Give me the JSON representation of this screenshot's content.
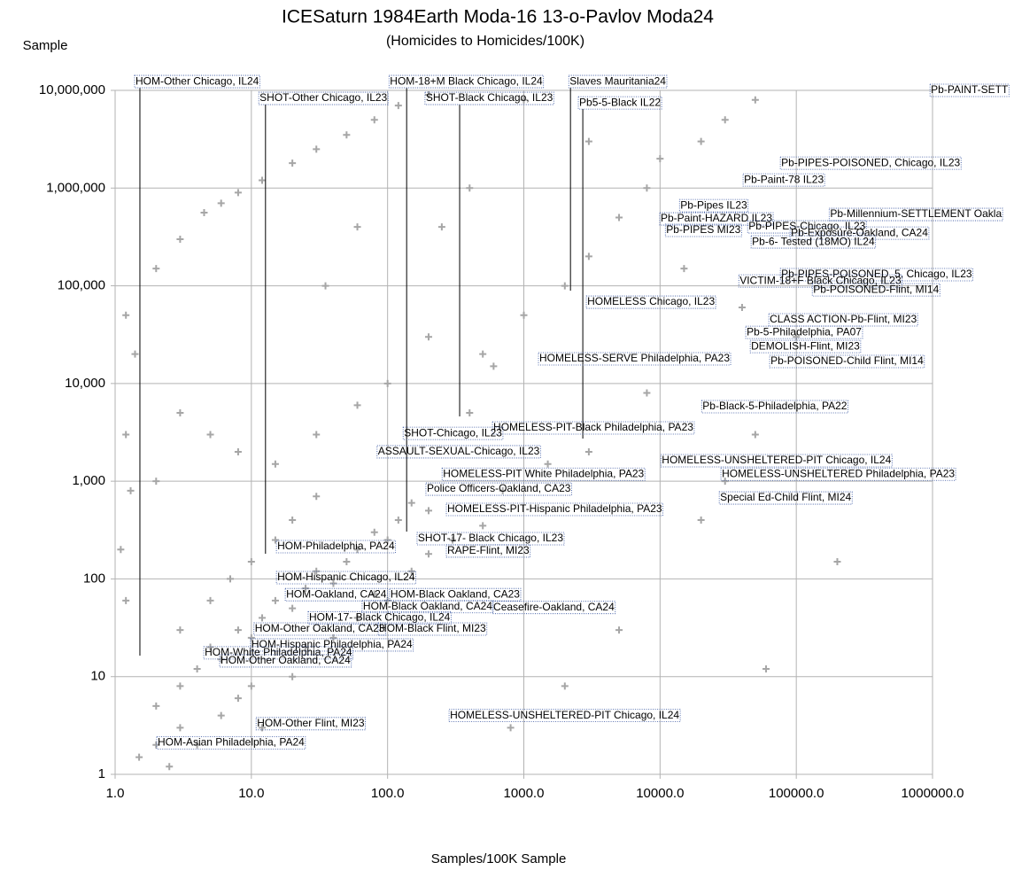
{
  "chart_data": {
    "type": "scatter",
    "title": "ICESaturn 1984Earth Moda-16 13-o-Pavlov Moda24",
    "subtitle": "(Homicides to Homicides/100K)",
    "y_label": "Sample",
    "x_label": "Samples/100K Sample",
    "log_x": true,
    "log_y": true,
    "grid": true,
    "xlim": [
      1,
      1000000
    ],
    "ylim": [
      1,
      10000000
    ],
    "xticks": [
      {
        "value": 1,
        "label": "1.0"
      },
      {
        "value": 10,
        "label": "10.0"
      },
      {
        "value": 100,
        "label": "100.0"
      },
      {
        "value": 1000,
        "label": "1000.0"
      },
      {
        "value": 10000,
        "label": "10000.0"
      },
      {
        "value": 100000,
        "label": "100000.0"
      },
      {
        "value": 1000000,
        "label": "1000000.0"
      }
    ],
    "yticks": [
      1,
      10,
      100,
      {
        "value": 1000,
        "label": "1,000"
      },
      {
        "value": 10000,
        "label": "10,000"
      },
      {
        "value": 100000,
        "label": "100,000"
      },
      {
        "value": 1000000,
        "label": "1,000,000"
      },
      {
        "value": 10000000,
        "label": "10,000,000"
      }
    ],
    "series": [
      {
        "color": "#a6a6a6",
        "x": [
          2,
          3,
          4,
          5,
          6,
          8,
          10,
          12,
          15,
          20,
          25,
          30,
          40,
          50,
          60,
          80,
          100,
          120,
          150,
          200,
          3,
          5,
          7,
          10,
          15,
          20,
          30,
          2,
          3,
          1.5,
          2.5,
          4,
          6,
          8,
          10,
          12,
          20,
          25,
          40,
          60,
          80,
          100,
          150,
          200,
          300,
          500,
          1.2,
          1.1,
          1.3,
          1.2,
          1.4,
          2,
          3,
          5,
          8,
          15,
          30,
          60,
          100,
          200,
          4.5,
          6,
          8,
          12,
          20,
          30,
          50,
          80,
          120,
          200,
          2,
          3,
          1.2,
          500,
          1000,
          2000,
          3000,
          5000,
          8000,
          10000,
          20000,
          30000,
          50000,
          1000,
          3000,
          15000,
          40000,
          100000,
          200000,
          30000,
          60000,
          5000,
          2000,
          800,
          20000,
          50000,
          8000,
          3000,
          1500,
          700,
          400,
          600,
          250,
          400,
          60,
          35
        ],
        "values": [
          5,
          8,
          12,
          20,
          15,
          30,
          25,
          40,
          60,
          50,
          80,
          120,
          90,
          150,
          200,
          300,
          250,
          400,
          600,
          500,
          30,
          60,
          100,
          150,
          250,
          400,
          700,
          2,
          3,
          1.5,
          1.2,
          2,
          4,
          6,
          8,
          3,
          10,
          20,
          25,
          40,
          70,
          60,
          120,
          180,
          250,
          350,
          60,
          200,
          800,
          3000,
          20000,
          1000,
          5000,
          3000,
          2000,
          1500,
          3000,
          6000,
          10000,
          30000,
          560000,
          700000,
          900000,
          1200000,
          1800000,
          2500000,
          3500000,
          5000000,
          7000000,
          9000000,
          150000,
          300000,
          50000,
          20000,
          50000,
          100000,
          200000,
          500000,
          1000000,
          2000000,
          3000000,
          5000000,
          8000000,
          8000000,
          3000000,
          150000,
          60000,
          30000,
          150,
          1000,
          12,
          30,
          8,
          3,
          400,
          3000,
          8000,
          2000,
          1500,
          800,
          5000,
          15000,
          400000,
          1000000,
          400000,
          100000
        ]
      }
    ],
    "annotations": [
      {
        "text": "HOM-Other Chicago, IL24",
        "x": 1.41,
        "y": 12300000,
        "line_to": [
          1.52,
          16.4
        ]
      },
      {
        "text": "SHOT-Other Chicago, IL23",
        "x": 11.5,
        "y": 8280000,
        "line_to": [
          12.7,
          181
        ]
      },
      {
        "text": "HOM-18+M Black Chicago, IL24",
        "x": 104,
        "y": 12300000,
        "line_to": [
          138,
          305
        ]
      },
      {
        "text": "SHOT-Black Chicago, IL23",
        "x": 191,
        "y": 8280000,
        "line_to": [
          338,
          4600
        ]
      },
      {
        "text": "Slaves Mauritania24",
        "x": 2170,
        "y": 12300000,
        "line_to": [
          2200,
          89100
        ]
      },
      {
        "text": "Pb5-5-Black IL22",
        "x": 2550,
        "y": 7450000,
        "line_to": [
          2710,
          2730
        ]
      },
      {
        "text": "Pb-PAINT-SETT",
        "x": 973000,
        "y": 10000000
      },
      {
        "text": "Pb-PIPES-POISONED, Chicago, IL23",
        "x": 77500,
        "y": 1800000
      },
      {
        "text": "Pb-Paint-78 IL23",
        "x": 41300,
        "y": 1210000
      },
      {
        "text": "Pb-Pipes IL23",
        "x": 14100,
        "y": 661000
      },
      {
        "text": "Pb-Millennium-SETTLEMENT Oakla",
        "x": 177000,
        "y": 537000
      },
      {
        "text": "Pb-Paint-HAZARD IL23",
        "x": 10100,
        "y": 484000
      },
      {
        "text": "Pb-PIPES-Chicago, IL23",
        "x": 44600,
        "y": 401000
      },
      {
        "text": "Pb-PIPES MI23",
        "x": 11100,
        "y": 369000
      },
      {
        "text": "Pb-Exposure-Oakland, CA24",
        "x": 91400,
        "y": 346000
      },
      {
        "text": "Pb-6- Tested (18MO) IL24",
        "x": 47300,
        "y": 281000
      },
      {
        "text": "Pb-PIPES-POISONED, 5, Chicago, IL23",
        "x": 77500,
        "y": 130000
      },
      {
        "text": "VICTIM-18+F Black Chicago, IL23",
        "x": 38400,
        "y": 112000
      },
      {
        "text": "Pb-POISONED-Flint, MI14",
        "x": 133000,
        "y": 91000
      },
      {
        "text": "HOMELESS Chicago, IL23",
        "x": 2920,
        "y": 68000
      },
      {
        "text": "CLASS ACTION-Pb-Flint, MI23",
        "x": 63800,
        "y": 44800
      },
      {
        "text": "Pb-5-Philadelphia, PA07",
        "x": 43200,
        "y": 33400
      },
      {
        "text": "DEMOLISH-Flint, MI23",
        "x": 46600,
        "y": 23900
      },
      {
        "text": "HOMELESS-SERVE Philadelphia, PA23",
        "x": 1300,
        "y": 17900
      },
      {
        "text": "Pb-POISONED-Child Flint, MI14",
        "x": 64700,
        "y": 16800
      },
      {
        "text": "Pb-Black-5-Philadelphia, PA22",
        "x": 20500,
        "y": 5790
      },
      {
        "text": "HOMELESS-PIT-Black Philadelphia, PA23",
        "x": 597,
        "y": 3510
      },
      {
        "text": "SHOT-Chicago, IL23",
        "x": 132,
        "y": 3090
      },
      {
        "text": "ASSAULT-SEXUAL-Chicago, IL23",
        "x": 85,
        "y": 2000
      },
      {
        "text": "HOMELESS-UNSHELTERED-PIT Chicago, IL24",
        "x": 10300,
        "y": 1620
      },
      {
        "text": "HOMELESS-PIT White Philadelphia, PA23",
        "x": 255,
        "y": 1180
      },
      {
        "text": "HOMELESS-UNSHELTERED Philadelphia, PA23",
        "x": 28400,
        "y": 1180
      },
      {
        "text": "Police Officers-Oakland, CA23",
        "x": 194,
        "y": 830
      },
      {
        "text": "Special Ed-Child Flint, MI24",
        "x": 27600,
        "y": 674
      },
      {
        "text": "HOMELESS-PIT-Hispanic Philadelphia, PA23",
        "x": 274,
        "y": 514
      },
      {
        "text": "SHOT-17- Black Chicago, IL23",
        "x": 167,
        "y": 258
      },
      {
        "text": "HOM-Philadelphia, PA24",
        "x": 15.5,
        "y": 214
      },
      {
        "text": "RAPE-Flint, MI23",
        "x": 274,
        "y": 193
      },
      {
        "text": "HOM-Hispanic Chicago, IL24",
        "x": 15.5,
        "y": 103
      },
      {
        "text": "HOM-Oakland, CA24",
        "x": 18.0,
        "y": 69
      },
      {
        "text": "HOM-Black Oakland, CA23",
        "x": 105,
        "y": 69
      },
      {
        "text": "HOM-Black Oakland, CA24",
        "x": 66,
        "y": 52
      },
      {
        "text": "Ceasefire-Oakland, CA24",
        "x": 597,
        "y": 51
      },
      {
        "text": "HOM-17- Black Chicago, IL24",
        "x": 26.5,
        "y": 40
      },
      {
        "text": "HOM-Other Oakland, CA23",
        "x": 10.6,
        "y": 30.7
      },
      {
        "text": "HOM-Black Flint, MI23",
        "x": 86.6,
        "y": 30.7
      },
      {
        "text": "HOM-Hispanic Philadelphia, PA24",
        "x": 10.0,
        "y": 21.1
      },
      {
        "text": "HOM-White Philadelphia, PA24",
        "x": 4.54,
        "y": 17.5
      },
      {
        "text": "HOM-Other Oakland, CA24",
        "x": 5.94,
        "y": 14.5
      },
      {
        "text": "HOMELESS-UNSHELTERED-PIT Chicago, IL24",
        "x": 287,
        "y": 4.0
      },
      {
        "text": "HOM-Other Flint, MI23",
        "x": 11.0,
        "y": 3.3
      },
      {
        "text": "HOM-Asian Philadelphia, PA24",
        "x": 2.05,
        "y": 2.1
      }
    ]
  }
}
